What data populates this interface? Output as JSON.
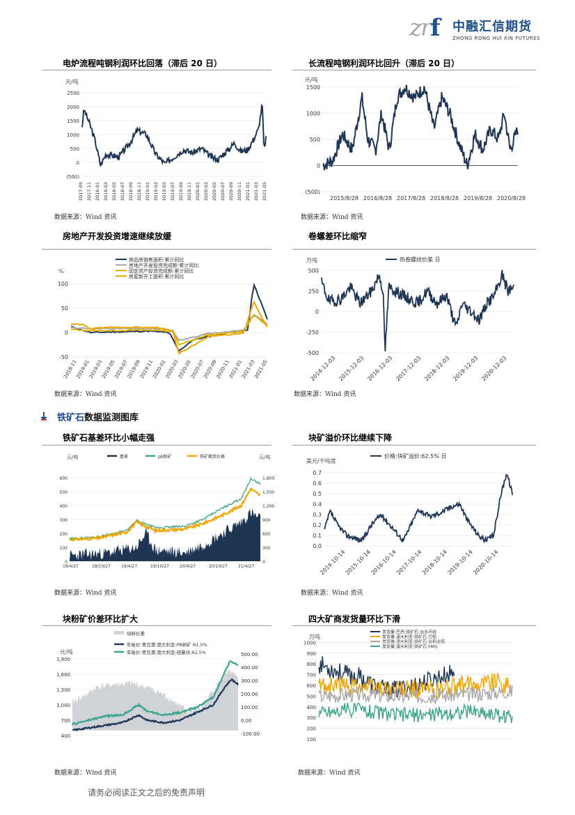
{
  "header": {
    "logo_mark_left": "zr",
    "logo_mark_right": "f",
    "logo_cn": "中融汇信期货",
    "logo_en": "ZHONG RONG HUI XIN FUTURES"
  },
  "charts": {
    "c1": {
      "title": "电炉流程吨钢利润环比回落（滞后 20 日）",
      "unit": "元/吨",
      "yticks": [
        "2500",
        "2000",
        "1500",
        "1000",
        "500",
        "0",
        "(500)"
      ],
      "xticks": [
        "2017-09",
        "2017-11",
        "2018-01",
        "2018-03",
        "2018-05",
        "2018-07",
        "2018-09",
        "2018-11",
        "2019-01",
        "2019-03",
        "2019-05",
        "2019-07",
        "2019-09",
        "2019-11",
        "2020-01",
        "2020-03",
        "2020-05",
        "2020-07",
        "2020-09",
        "2020-11",
        "2021-01",
        "2021-03",
        "2021-05"
      ],
      "source": "数据来源：Wind 资讯"
    },
    "c2": {
      "title": "长流程吨钢利润环比回升（滞后 20 日）",
      "unit": "元/吨",
      "yticks": [
        "1500",
        "1000",
        "500",
        "0",
        "(500)"
      ],
      "xticks": [
        "2015/8/28",
        "2016/8/28",
        "2017/8/28",
        "2018/8/28",
        "2019/8/28",
        "2020/8/28"
      ],
      "source": "数据来源：Wind 资讯"
    },
    "c3": {
      "title": "房地产开发投资增速继续放缓",
      "unit": "%",
      "yticks": [
        "100",
        "50",
        "0",
        "-50"
      ],
      "legend": [
        "商品房销售面积:累计同比",
        "房地产开发投资完成额:累计同比",
        "固定资产投资完成额:累计同比",
        "房屋新开工面积:累计同比"
      ],
      "xticks": [
        "2018-11",
        "2019-01",
        "2019-03",
        "2019-05",
        "2019-07",
        "2019-09",
        "2019-11",
        "2020-01",
        "2020-03",
        "2020-05",
        "2020-07",
        "2020-09",
        "2020-11",
        "2021-01",
        "2021-03",
        "2021-05"
      ],
      "source": "数据来源：Wind 资讯"
    },
    "c4": {
      "title": "卷螺差环比缩窄",
      "unit": "万吨",
      "yticks": [
        "500",
        "250",
        "0",
        "-250",
        "-500"
      ],
      "legend": [
        "热卷螺纹价差 日"
      ],
      "xticks": [
        "2014-12-03",
        "2015-12-03",
        "2016-12-03",
        "2017-12-03",
        "2018-12-03",
        "2019-12-03",
        "2020-12-03"
      ],
      "source": "数据来源：Wind 资讯"
    },
    "section_prefix": "铁矿石",
    "section_suffix": "数据监测图库",
    "c5": {
      "title": "铁矿石基差环比小幅走强",
      "unit_left": "元/吨",
      "unit_right": "元/吨",
      "legend": [
        "基差",
        "pb粉矿",
        "铁矿期货价格"
      ],
      "yticks_left": [
        "600",
        "500",
        "400",
        "300",
        "200",
        "100",
        "0"
      ],
      "yticks_right": [
        "1,800",
        "1,500",
        "1,200",
        "900",
        "600",
        "300",
        "0"
      ],
      "xticks": [
        "18/4/27",
        "18/10/27",
        "19/4/27",
        "19/10/27",
        "20/4/27",
        "20/10/27",
        "21/4/27"
      ],
      "source": "数据来源：Wind 资讯"
    },
    "c6": {
      "title": "块矿溢价环比继续下降",
      "unit": "美元/干吨度",
      "legend": [
        "价格:块矿溢价:62.5% 日"
      ],
      "yticks": [
        "0.7",
        "0.6",
        "0.5",
        "0.4",
        "0.3",
        "0.2",
        "0.1",
        "0.0"
      ],
      "xticks": [
        "2014-10-14",
        "2015-10-14",
        "2016-10-14",
        "2017-10-14",
        "2018-10-14",
        "2019-10-14",
        "2020-10-14"
      ],
      "source": "数据来源：Wind 资讯"
    },
    "c7": {
      "title": "块粉矿价差环比扩大",
      "unit": "元/吨",
      "legend": [
        "块粉价差",
        "车板价:青岛港:澳大利亚:PB粉矿:61.5%",
        "车板价:青岛港:澳大利亚:纽曼块:62.5%"
      ],
      "yticks_left": [
        "1,900",
        "1,600",
        "1,300",
        "1,000",
        "700",
        "400"
      ],
      "yticks_right": [
        "500.00",
        "400.00",
        "300.00",
        "200.00",
        "100.00",
        "0.00",
        "-100.00"
      ],
      "source": "数据来源：Wind 资讯"
    },
    "c8": {
      "title": "四大矿商发货量环比下滑",
      "unit": "万吨",
      "legend": [
        "发货量:巴西:铁矿石:淡水河谷",
        "发货量:澳大利亚:铁矿石:力拓",
        "发货量:澳大利亚:铁矿石:必和必拓",
        "发货量:澳大利亚:铁矿石:FMG"
      ],
      "yticks": [
        "1000",
        "900",
        "800",
        "700",
        "600",
        "500",
        "400",
        "300",
        "200",
        "100"
      ],
      "source": "数据来源：Wind 资讯"
    }
  },
  "footer": {
    "disclaimer": "请务必阅读正文之后的免责声明"
  },
  "colors": {
    "navy": "#1f3554",
    "gray": "#a8a8a8",
    "orange": "#f0a500",
    "teal": "#3aa58a",
    "blue": "#1f4f8f"
  }
}
